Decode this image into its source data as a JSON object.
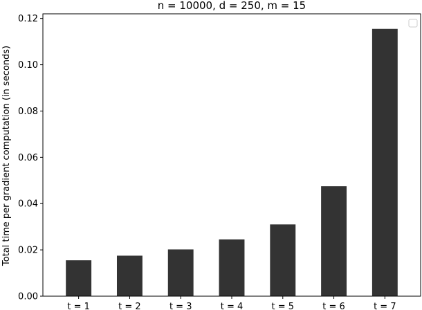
{
  "chart_data": {
    "type": "bar",
    "title": "n = 10000,  d = 250, m = 15",
    "xlabel": "",
    "ylabel": "Total time per gradient computation (in seconds)",
    "categories": [
      "t = 1",
      "t = 2",
      "t = 3",
      "t = 4",
      "t = 5",
      "t = 6",
      "t = 7"
    ],
    "values": [
      0.0155,
      0.0175,
      0.0202,
      0.0245,
      0.031,
      0.0475,
      0.1155
    ],
    "ylim": [
      0,
      0.122
    ],
    "yticks": [
      "0.00",
      "0.02",
      "0.04",
      "0.06",
      "0.08",
      "0.10",
      "0.12"
    ],
    "ytick_values": [
      0,
      0.02,
      0.04,
      0.06,
      0.08,
      0.1,
      0.12
    ],
    "bar_color": "#333333",
    "grid": false,
    "legend": {
      "placement": "top-right",
      "entries": []
    }
  }
}
